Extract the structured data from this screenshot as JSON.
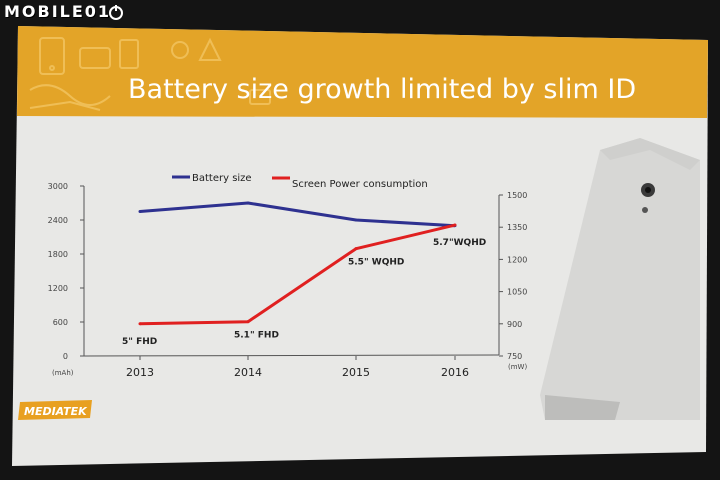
{
  "watermark": {
    "text": "MOBILE01"
  },
  "slide": {
    "title": "Battery size growth limited by slim ID",
    "brand": "MEDIATEK",
    "colors": {
      "banner": "#e3a428",
      "slide_bg": "#e8e8e6",
      "battery_line": "#2e3190",
      "screen_line": "#e02020",
      "brand_logo": "#e8a020"
    },
    "decor_icons": [
      "phone-doodle-icon",
      "phone-device-icon"
    ]
  },
  "chart_data": {
    "type": "line",
    "categories": [
      "2013",
      "2014",
      "2015",
      "2016"
    ],
    "series": [
      {
        "name": "Battery size",
        "axis": "left",
        "color": "#2e3190",
        "values": [
          2550,
          2700,
          2400,
          2300
        ]
      },
      {
        "name": "Screen Power consumption",
        "axis": "right",
        "color": "#e02020",
        "values": [
          900,
          910,
          1250,
          1360
        ]
      }
    ],
    "point_labels": [
      "5\" FHD",
      "5.1\" FHD",
      "5.5\" WQHD",
      "5.7\"WQHD"
    ],
    "y_left": {
      "unit": "(mAh)",
      "ticks": [
        "0",
        "600",
        "1200",
        "1800",
        "2400",
        "3000"
      ],
      "range": [
        0,
        3000
      ]
    },
    "y_right": {
      "unit": "(mW)",
      "ticks": [
        "750",
        "900",
        "1050",
        "1200",
        "1350",
        "1500"
      ],
      "range": [
        750,
        1500
      ]
    },
    "legend_position": "top",
    "grid": false
  }
}
